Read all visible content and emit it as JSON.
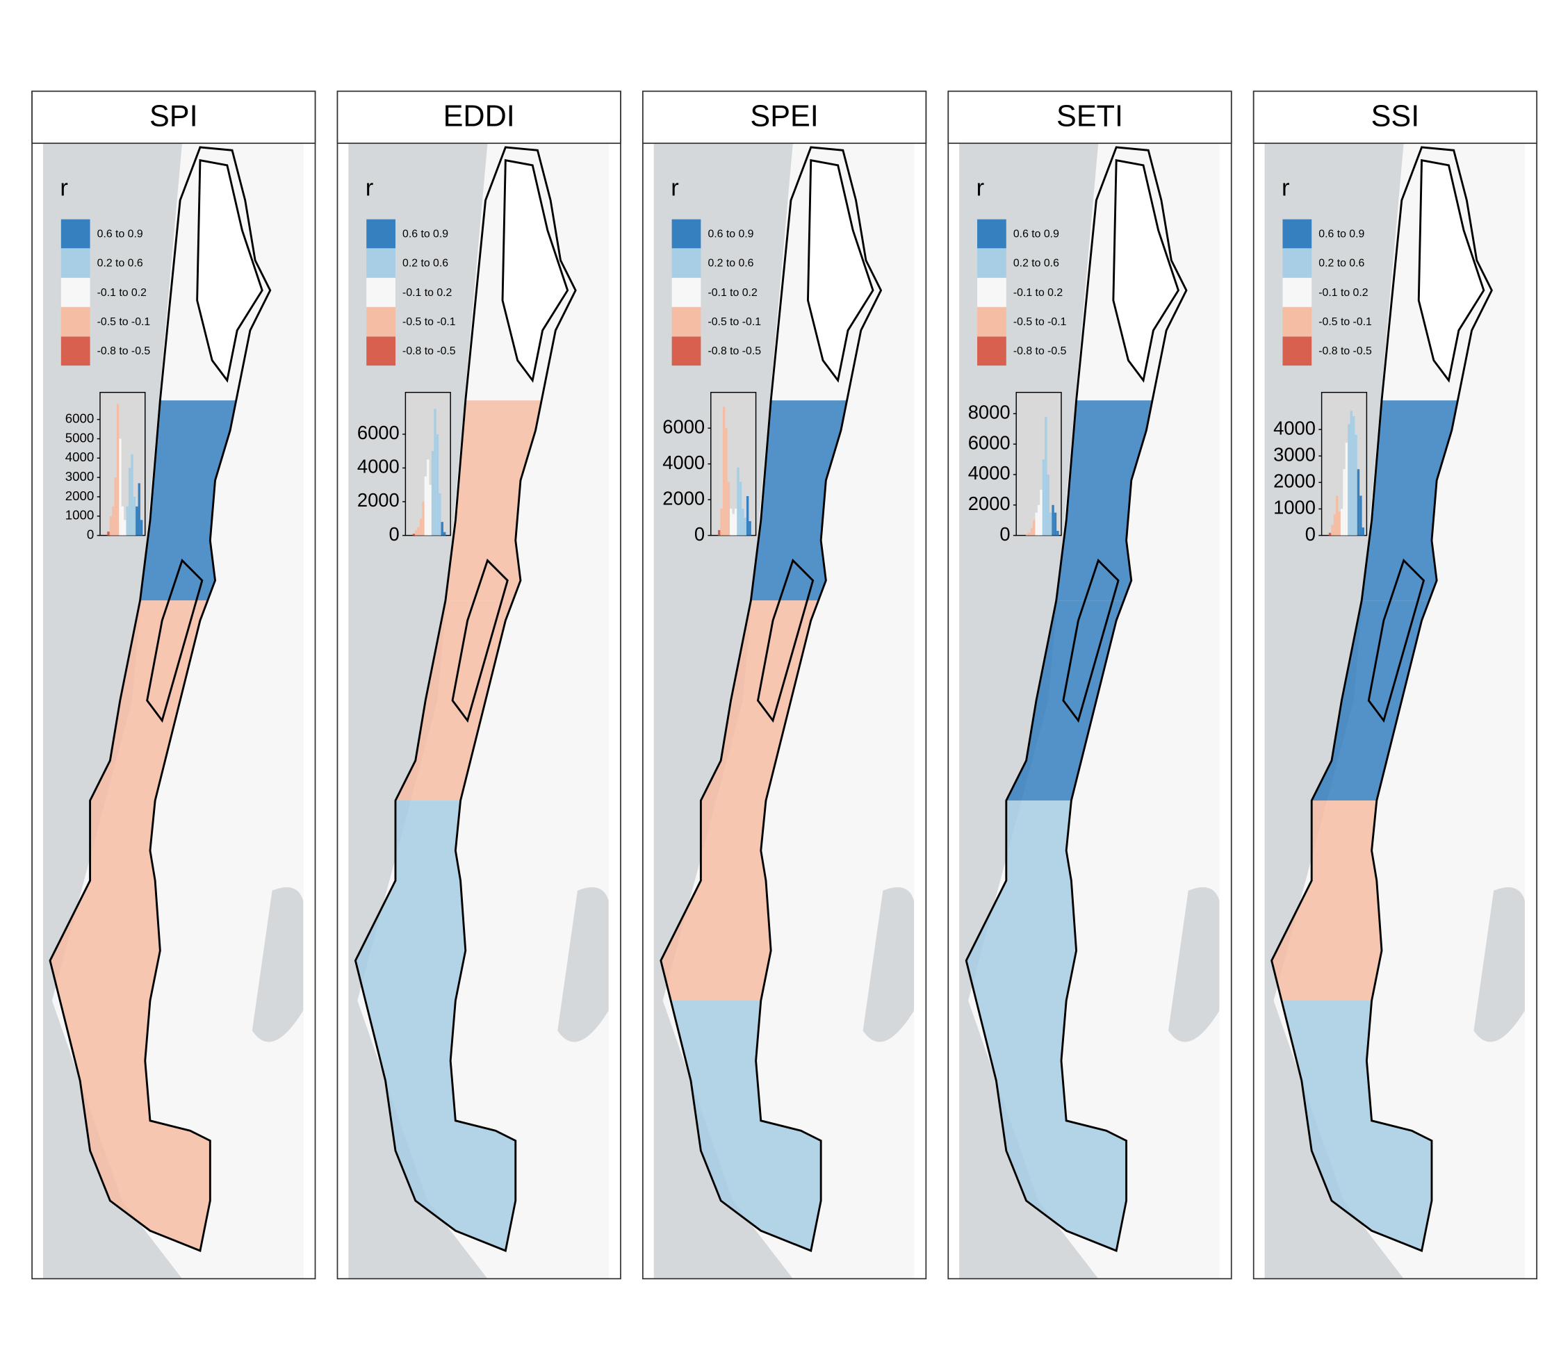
{
  "legend": {
    "title": "r",
    "items": [
      {
        "label": "0.6 to 0.9",
        "color": "#3680c0"
      },
      {
        "label": "0.2 to 0.6",
        "color": "#a7cee4"
      },
      {
        "label": "-0.1 to 0.2",
        "color": "#f7f7f7"
      },
      {
        "label": "-0.5 to -0.1",
        "color": "#f6bda5"
      },
      {
        "label": "-0.8 to -0.5",
        "color": "#d7604e"
      }
    ],
    "breaks": [
      0.9,
      0.6,
      0.2,
      -0.1,
      -0.5,
      -0.8
    ]
  },
  "panels": [
    {
      "title": "SPI",
      "histogram": {
        "bins": [
          -0.8,
          -0.7,
          -0.6,
          -0.5,
          -0.4,
          -0.3,
          -0.2,
          -0.1,
          0,
          0.1,
          0.2,
          0.3,
          0.4,
          0.5,
          0.6,
          0.7,
          0.8,
          0.9
        ],
        "values": [
          0,
          0,
          200,
          1000,
          1500,
          3000,
          6800,
          5000,
          1500,
          800,
          1500,
          3500,
          4200,
          2000,
          1500,
          2700,
          800
        ],
        "xlim": [
          -0.9,
          1.0
        ],
        "ylim": [
          0,
          7400
        ],
        "yticks": [
          0,
          1000,
          2000,
          3000,
          4000,
          5000,
          6000
        ]
      }
    },
    {
      "title": "EDDI",
      "histogram": {
        "bins": [
          -0.8,
          -0.7,
          -0.6,
          -0.5,
          -0.4,
          -0.3,
          -0.2,
          -0.1,
          0,
          0.1,
          0.2,
          0.3,
          0.4,
          0.5,
          0.6,
          0.7,
          0.8,
          0.9
        ],
        "values": [
          0,
          0,
          100,
          300,
          500,
          1000,
          2000,
          3500,
          4500,
          3000,
          5000,
          7500,
          6000,
          2500,
          800,
          200,
          0
        ],
        "xlim": [
          -0.9,
          1.0
        ],
        "ylim": [
          0,
          8480
        ],
        "yticks": [
          0,
          2000,
          4000,
          6000
        ]
      }
    },
    {
      "title": "SPEI",
      "histogram": {
        "bins": [
          -0.8,
          -0.7,
          -0.6,
          -0.5,
          -0.4,
          -0.3,
          -0.2,
          -0.1,
          0,
          0.1,
          0.2,
          0.3,
          0.4,
          0.5,
          0.6,
          0.7,
          0.8,
          0.9
        ],
        "values": [
          0,
          0,
          300,
          1500,
          7200,
          6000,
          3000,
          1500,
          1200,
          1500,
          3800,
          3000,
          1500,
          1000,
          2200,
          800,
          0
        ],
        "xlim": [
          -0.9,
          1.0
        ],
        "ylim": [
          0,
          8000
        ],
        "yticks": [
          0,
          2000,
          4000,
          6000
        ]
      }
    },
    {
      "title": "SETI",
      "histogram": {
        "bins": [
          -0.8,
          -0.7,
          -0.6,
          -0.5,
          -0.4,
          -0.3,
          -0.2,
          -0.1,
          0,
          0.1,
          0.2,
          0.3,
          0.4,
          0.5,
          0.6,
          0.7,
          0.8,
          0.9
        ],
        "values": [
          0,
          0,
          0,
          100,
          200,
          500,
          1000,
          1500,
          2000,
          3000,
          5000,
          7800,
          4000,
          1500,
          2000,
          1500,
          300
        ],
        "xlim": [
          -0.9,
          1.0
        ],
        "ylim": [
          0,
          9400
        ],
        "yticks": [
          0,
          2000,
          4000,
          6000,
          8000
        ]
      }
    },
    {
      "title": "SSI",
      "histogram": {
        "bins": [
          -0.8,
          -0.7,
          -0.6,
          -0.5,
          -0.4,
          -0.3,
          -0.2,
          -0.1,
          0,
          0.1,
          0.2,
          0.3,
          0.4,
          0.5,
          0.6,
          0.7,
          0.8,
          0.9
        ],
        "values": [
          0,
          0,
          100,
          400,
          800,
          1500,
          900,
          1000,
          2500,
          3500,
          4200,
          4700,
          4500,
          3800,
          2500,
          1500,
          300
        ],
        "xlim": [
          -0.9,
          1.0
        ],
        "ylim": [
          0,
          5400
        ],
        "yticks": [
          0,
          1000,
          2000,
          3000,
          4000
        ]
      }
    }
  ]
}
